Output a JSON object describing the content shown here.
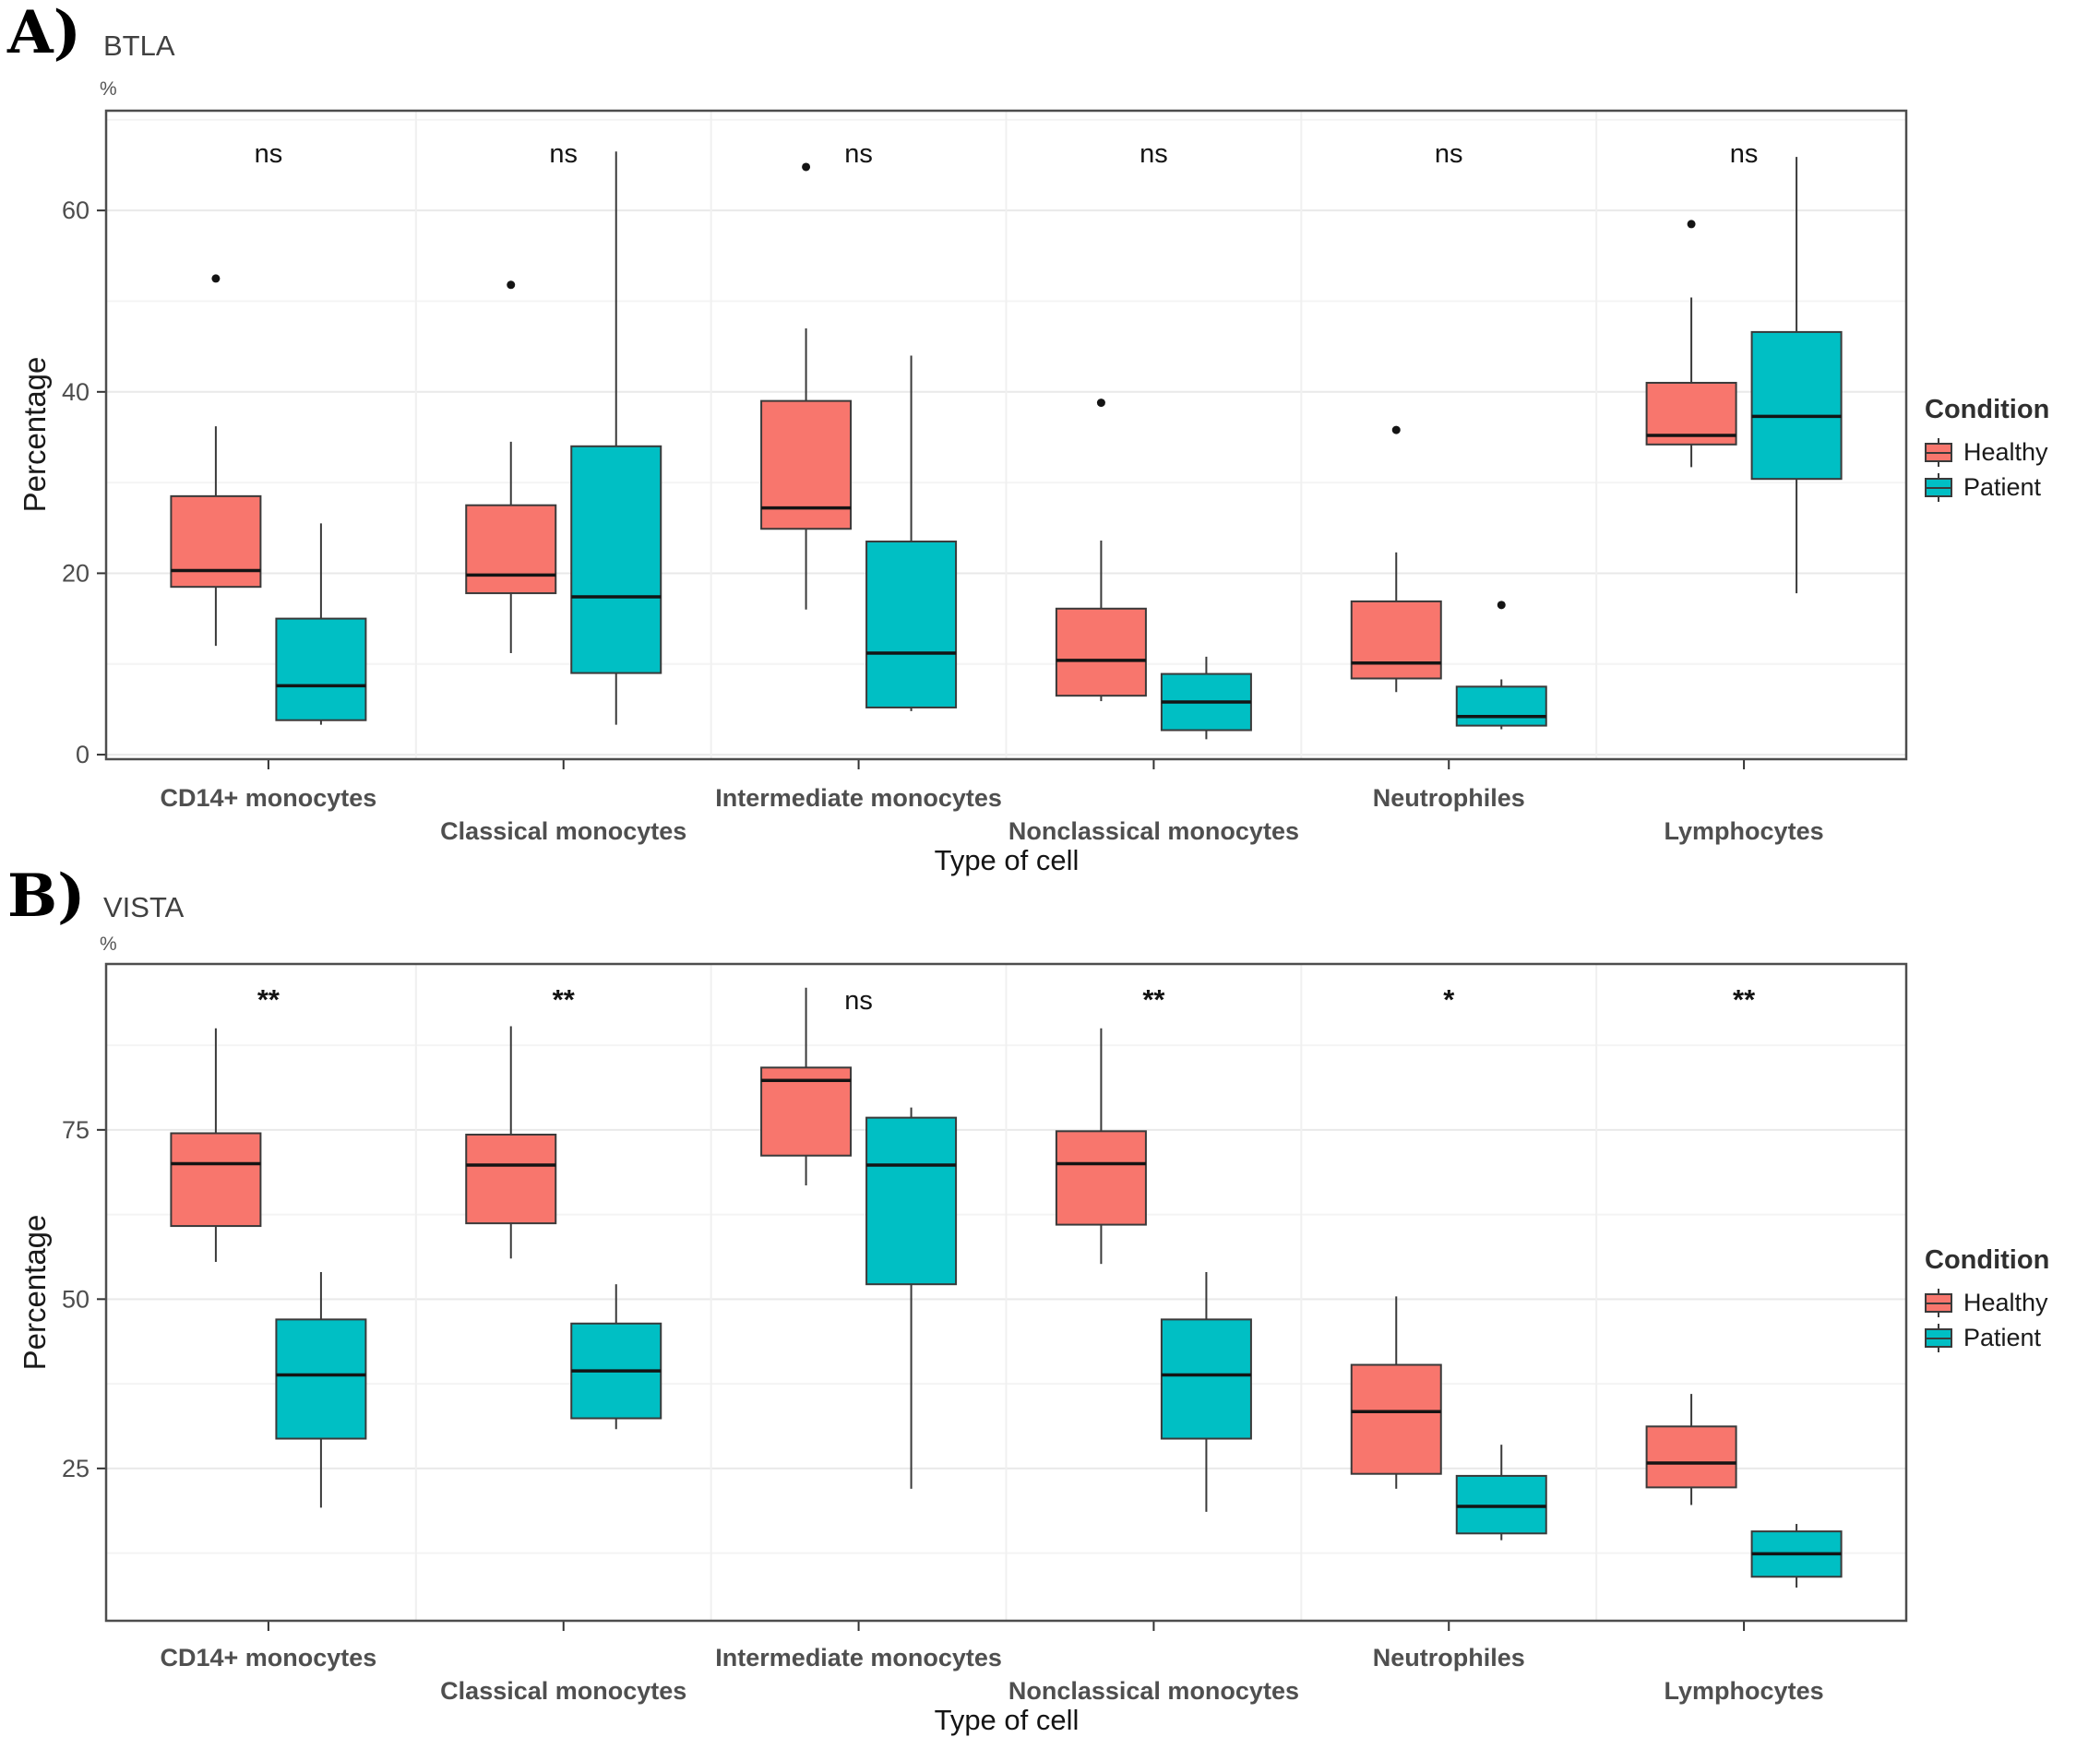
{
  "panels": [
    {
      "letter": "A)",
      "title": "BTLA",
      "unit": "%"
    },
    {
      "letter": "B)",
      "title": "VISTA",
      "unit": "%"
    }
  ],
  "axes": {
    "x_title": "Type of cell",
    "y_title": "Percentage"
  },
  "legend": {
    "title": "Condition",
    "items": [
      {
        "label": "Healthy",
        "color": "#F8766D"
      },
      {
        "label": "Patient",
        "color": "#00BFC4"
      }
    ]
  },
  "chart_data": [
    {
      "type": "boxplot",
      "panel": "A",
      "title": "BTLA",
      "unit": "%",
      "xlabel": "Type of cell",
      "ylabel": "Percentage",
      "legend_position": "right",
      "grid": true,
      "categories": [
        "CD14+ monocytes",
        "Classical monocytes",
        "Intermediate monocytes",
        "Nonclassical monocytes",
        "Neutrophiles",
        "Lymphocytes"
      ],
      "y_ticks": [
        0,
        20,
        40,
        60
      ],
      "ylim": [
        -0.5,
        71
      ],
      "significance": [
        "ns",
        "ns",
        "ns",
        "ns",
        "ns",
        "ns"
      ],
      "series": [
        {
          "name": "Healthy",
          "color": "#F8766D",
          "boxes": [
            {
              "lo": 12.0,
              "q1": 18.5,
              "med": 20.3,
              "q3": 28.5,
              "hi": 36.2,
              "outliers": [
                52.5
              ]
            },
            {
              "lo": 11.2,
              "q1": 17.8,
              "med": 19.8,
              "q3": 27.5,
              "hi": 34.5,
              "outliers": [
                51.8
              ]
            },
            {
              "lo": 16.0,
              "q1": 24.9,
              "med": 27.2,
              "q3": 39.0,
              "hi": 47.0,
              "outliers": [
                64.8
              ]
            },
            {
              "lo": 5.9,
              "q1": 6.5,
              "med": 10.4,
              "q3": 16.1,
              "hi": 23.6,
              "outliers": [
                38.8
              ]
            },
            {
              "lo": 6.9,
              "q1": 8.4,
              "med": 10.1,
              "q3": 16.9,
              "hi": 22.3,
              "outliers": [
                35.8
              ]
            },
            {
              "lo": 31.7,
              "q1": 34.2,
              "med": 35.2,
              "q3": 41.0,
              "hi": 50.4,
              "outliers": [
                58.5
              ]
            }
          ]
        },
        {
          "name": "Patient",
          "color": "#00BFC4",
          "boxes": [
            {
              "lo": 3.3,
              "q1": 3.8,
              "med": 7.6,
              "q3": 15.0,
              "hi": 25.5,
              "outliers": []
            },
            {
              "lo": 3.3,
              "q1": 9.0,
              "med": 17.4,
              "q3": 34.0,
              "hi": 66.5,
              "outliers": []
            },
            {
              "lo": 4.8,
              "q1": 5.2,
              "med": 11.2,
              "q3": 23.5,
              "hi": 44.0,
              "outliers": []
            },
            {
              "lo": 1.7,
              "q1": 2.7,
              "med": 5.8,
              "q3": 8.9,
              "hi": 10.8,
              "outliers": []
            },
            {
              "lo": 2.8,
              "q1": 3.2,
              "med": 4.2,
              "q3": 7.5,
              "hi": 8.3,
              "outliers": [
                16.5
              ]
            },
            {
              "lo": 17.8,
              "q1": 30.4,
              "med": 37.3,
              "q3": 46.6,
              "hi": 65.9,
              "outliers": []
            }
          ]
        }
      ]
    },
    {
      "type": "boxplot",
      "panel": "B",
      "title": "VISTA",
      "unit": "%",
      "xlabel": "Type of cell",
      "ylabel": "Percentage",
      "legend_position": "right",
      "grid": true,
      "categories": [
        "CD14+ monocytes",
        "Classical monocytes",
        "Intermediate monocytes",
        "Nonclassical monocytes",
        "Neutrophiles",
        "Lymphocytes"
      ],
      "y_ticks": [
        25,
        50,
        75
      ],
      "ylim": [
        2.5,
        99.5
      ],
      "significance": [
        "**",
        "**",
        "ns",
        "**",
        "*",
        "**"
      ],
      "series": [
        {
          "name": "Healthy",
          "color": "#F8766D",
          "boxes": [
            {
              "lo": 55.5,
              "q1": 60.8,
              "med": 70.0,
              "q3": 74.5,
              "hi": 90.0,
              "outliers": []
            },
            {
              "lo": 56.0,
              "q1": 61.2,
              "med": 69.8,
              "q3": 74.3,
              "hi": 90.3,
              "outliers": []
            },
            {
              "lo": 66.8,
              "q1": 71.2,
              "med": 82.3,
              "q3": 84.2,
              "hi": 96.0,
              "outliers": []
            },
            {
              "lo": 55.2,
              "q1": 61.0,
              "med": 70.0,
              "q3": 74.8,
              "hi": 90.0,
              "outliers": []
            },
            {
              "lo": 22.0,
              "q1": 24.2,
              "med": 33.4,
              "q3": 40.3,
              "hi": 50.4,
              "outliers": []
            },
            {
              "lo": 19.6,
              "q1": 22.2,
              "med": 25.8,
              "q3": 31.2,
              "hi": 36.0,
              "outliers": []
            }
          ]
        },
        {
          "name": "Patient",
          "color": "#00BFC4",
          "boxes": [
            {
              "lo": 19.2,
              "q1": 29.4,
              "med": 38.8,
              "q3": 47.0,
              "hi": 54.0,
              "outliers": []
            },
            {
              "lo": 30.8,
              "q1": 32.4,
              "med": 39.4,
              "q3": 46.4,
              "hi": 52.2,
              "outliers": []
            },
            {
              "lo": 22.0,
              "q1": 52.2,
              "med": 69.8,
              "q3": 76.8,
              "hi": 78.3,
              "outliers": []
            },
            {
              "lo": 18.6,
              "q1": 29.4,
              "med": 38.8,
              "q3": 47.0,
              "hi": 54.0,
              "outliers": []
            },
            {
              "lo": 14.4,
              "q1": 15.4,
              "med": 19.4,
              "q3": 23.9,
              "hi": 28.5,
              "outliers": []
            },
            {
              "lo": 7.4,
              "q1": 9.0,
              "med": 12.4,
              "q3": 15.7,
              "hi": 16.8,
              "outliers": []
            }
          ]
        }
      ]
    }
  ]
}
